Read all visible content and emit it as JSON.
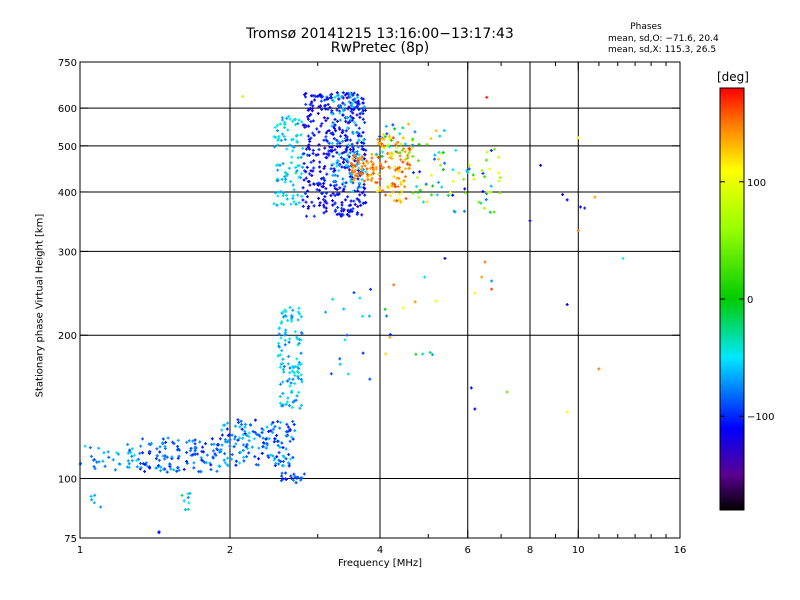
{
  "chart_data": {
    "type": "scatter",
    "title_line1": "Tromsø 20141215 13:16:00−13:17:43",
    "title_line2": "RwPretec (8p)",
    "xlabel": "Frequency [MHz]",
    "ylabel": "Stationary phase Virtual Height [km]",
    "x_scale": "log",
    "y_scale": "log",
    "xlim": [
      1,
      16
    ],
    "ylim": [
      75,
      750
    ],
    "x_ticks": [
      {
        "value": 1,
        "label": "1"
      },
      {
        "value": 2,
        "label": "2"
      },
      {
        "value": 4,
        "label": "4"
      },
      {
        "value": 6,
        "label": "6"
      },
      {
        "value": 8,
        "label": "8"
      },
      {
        "value": 10,
        "label": "10"
      },
      {
        "value": 16,
        "label": "16"
      }
    ],
    "x_minor_ticks": [
      3,
      5,
      7,
      9,
      11,
      12,
      13,
      14,
      15
    ],
    "x_grid": [
      2,
      4,
      6,
      8,
      10
    ],
    "y_ticks": [
      {
        "value": 75,
        "label": "75"
      },
      {
        "value": 100,
        "label": "100"
      },
      {
        "value": 200,
        "label": "200"
      },
      {
        "value": 300,
        "label": "300"
      },
      {
        "value": 400,
        "label": "400"
      },
      {
        "value": 500,
        "label": "500"
      },
      {
        "value": 600,
        "label": "600"
      },
      {
        "value": 750,
        "label": "750"
      }
    ],
    "y_grid": [
      100,
      200,
      300,
      400,
      500,
      600
    ],
    "grid": true,
    "stats_title": "Phases",
    "stats_o": "mean, sd,O: −71.6, 20.4",
    "stats_x": "mean, sd,X: 115.3, 26.5",
    "colorbar": {
      "unit": "[deg]",
      "range": [
        -180,
        180
      ],
      "ticks": [
        {
          "value": 100,
          "label": "100"
        },
        {
          "value": 0,
          "label": "0"
        },
        {
          "value": -100,
          "label": "−100"
        }
      ],
      "stops": [
        {
          "value": -180,
          "color": "#000000"
        },
        {
          "value": -150,
          "color": "#5a0090"
        },
        {
          "value": -110,
          "color": "#0000ff"
        },
        {
          "value": -50,
          "color": "#00e8ff"
        },
        {
          "value": 0,
          "color": "#00cc00"
        },
        {
          "value": 60,
          "color": "#99ff00"
        },
        {
          "value": 110,
          "color": "#ffff00"
        },
        {
          "value": 150,
          "color": "#ff7700"
        },
        {
          "value": 180,
          "color": "#ff0000"
        }
      ]
    },
    "clusters": [
      {
        "f": [
          1.0,
          1.32
        ],
        "h": [
          103,
          118
        ],
        "n": 40,
        "phase": [
          -50,
          -90
        ]
      },
      {
        "f": [
          1.32,
          1.9
        ],
        "h": [
          103,
          122
        ],
        "n": 120,
        "phase": [
          -60,
          -110
        ]
      },
      {
        "f": [
          1.9,
          2.7
        ],
        "h": [
          106,
          133
        ],
        "n": 160,
        "phase": [
          -50,
          -110
        ]
      },
      {
        "f": [
          2.52,
          2.85
        ],
        "h": [
          98,
          103
        ],
        "n": 20,
        "phase": [
          -70,
          -110
        ]
      },
      {
        "f": [
          2.5,
          2.8
        ],
        "h": [
          140,
          230
        ],
        "n": 110,
        "phase": [
          -40,
          -80
        ]
      },
      {
        "f": [
          1.05,
          1.1
        ],
        "h": [
          86,
          93
        ],
        "n": 5,
        "phase": [
          -60,
          -70
        ]
      },
      {
        "f": [
          1.58,
          1.68
        ],
        "h": [
          86,
          94
        ],
        "n": 8,
        "phase": [
          -20,
          -80
        ]
      },
      {
        "f": [
          1.42,
          1.45
        ],
        "h": [
          75,
          78
        ],
        "n": 2,
        "phase": [
          -100,
          -110
        ]
      },
      {
        "f": [
          2.45,
          2.8
        ],
        "h": [
          375,
          580
        ],
        "n": 100,
        "phase": [
          -35,
          -75
        ]
      },
      {
        "f": [
          2.8,
          3.75
        ],
        "h": [
          355,
          650
        ],
        "n": 420,
        "phase": [
          -90,
          -130
        ]
      },
      {
        "f": [
          3.2,
          3.75
        ],
        "h": [
          400,
          650
        ],
        "n": 90,
        "phase": [
          -40,
          -80
        ]
      },
      {
        "f": [
          3.5,
          3.9
        ],
        "h": [
          420,
          480
        ],
        "n": 55,
        "phase": [
          130,
          160
        ]
      },
      {
        "f": [
          3.9,
          4.6
        ],
        "h": [
          380,
          520
        ],
        "n": 90,
        "phase": [
          110,
          170
        ]
      },
      {
        "f": [
          3.9,
          4.7
        ],
        "h": [
          470,
          560
        ],
        "n": 40,
        "phase": [
          -100,
          150
        ]
      },
      {
        "f": [
          4.6,
          5.6
        ],
        "h": [
          380,
          540
        ],
        "n": 40,
        "phase": [
          -110,
          150
        ]
      },
      {
        "f": [
          5.6,
          7.0
        ],
        "h": [
          360,
          500
        ],
        "n": 40,
        "phase": [
          -110,
          120
        ]
      },
      {
        "f": [
          3.1,
          3.9
        ],
        "h": [
          160,
          260
        ],
        "n": 16,
        "phase": [
          -100,
          -40
        ]
      },
      {
        "f": [
          3.8,
          5.2
        ],
        "h": [
          180,
          290
        ],
        "n": 14,
        "phase": [
          -110,
          150
        ]
      }
    ],
    "points": [
      {
        "f": 2.12,
        "h": 635,
        "phase": 90
      },
      {
        "f": 6.55,
        "h": 632,
        "phase": 170
      },
      {
        "f": 8.4,
        "h": 455,
        "phase": -110
      },
      {
        "f": 8.0,
        "h": 348,
        "phase": -120
      },
      {
        "f": 9.3,
        "h": 395,
        "phase": -120
      },
      {
        "f": 9.5,
        "h": 385,
        "phase": -110
      },
      {
        "f": 10.0,
        "h": 520,
        "phase": 110
      },
      {
        "f": 10.1,
        "h": 372,
        "phase": -110
      },
      {
        "f": 10.3,
        "h": 370,
        "phase": -100
      },
      {
        "f": 10.0,
        "h": 332,
        "phase": 150
      },
      {
        "f": 10.8,
        "h": 390,
        "phase": 140
      },
      {
        "f": 12.3,
        "h": 290,
        "phase": -50
      },
      {
        "f": 9.5,
        "h": 232,
        "phase": -110
      },
      {
        "f": 11.0,
        "h": 170,
        "phase": 150
      },
      {
        "f": 9.5,
        "h": 138,
        "phase": 110
      },
      {
        "f": 7.2,
        "h": 152,
        "phase": 40
      },
      {
        "f": 6.1,
        "h": 155,
        "phase": -110
      },
      {
        "f": 6.2,
        "h": 140,
        "phase": -110
      },
      {
        "f": 6.4,
        "h": 265,
        "phase": 140
      },
      {
        "f": 6.2,
        "h": 245,
        "phase": 110
      },
      {
        "f": 6.5,
        "h": 285,
        "phase": 150
      },
      {
        "f": 6.7,
        "h": 260,
        "phase": -70
      },
      {
        "f": 5.4,
        "h": 290,
        "phase": -110
      },
      {
        "f": 6.7,
        "h": 250,
        "phase": 160
      }
    ]
  }
}
